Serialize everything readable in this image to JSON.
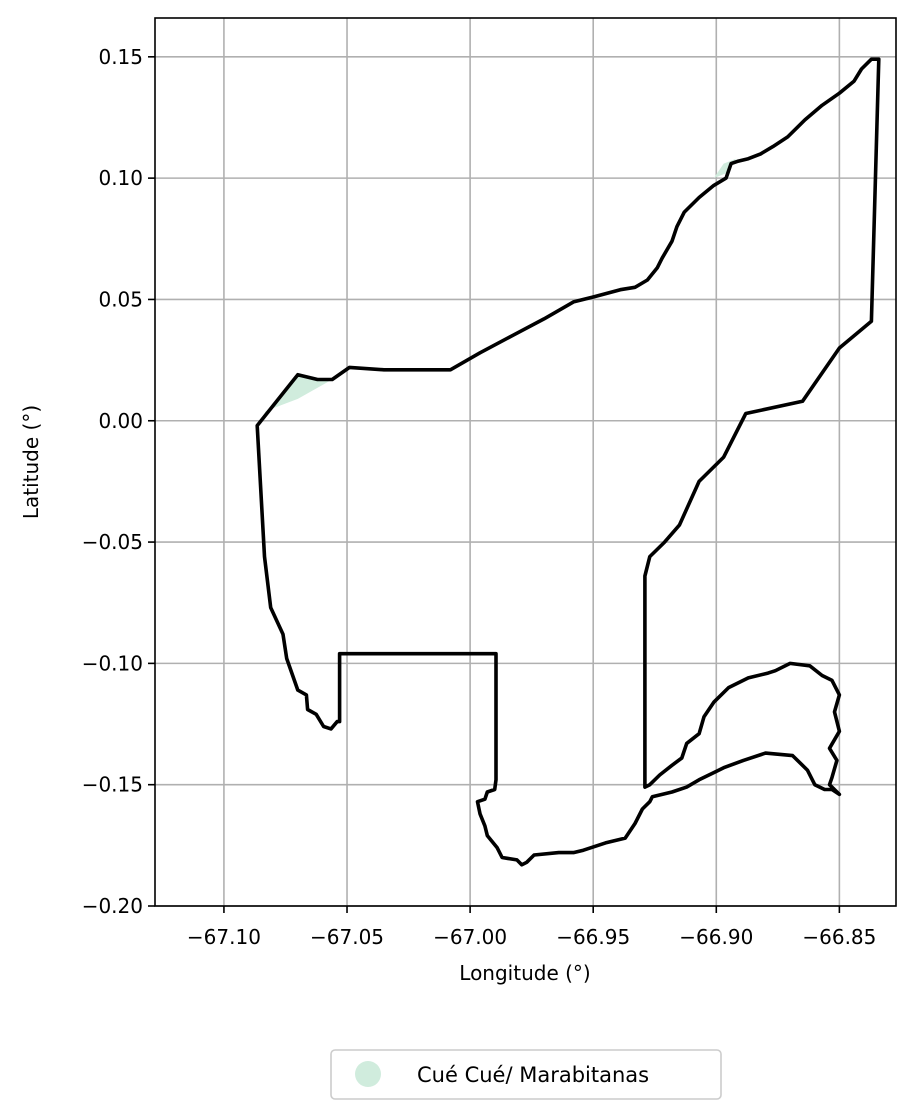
{
  "chart_data": {
    "type": "map",
    "xlabel": "Longitude (°)",
    "ylabel": "Latitude (°)",
    "xlim": [
      -67.128,
      -66.827
    ],
    "ylim": [
      -0.2,
      0.166
    ],
    "xticks": [
      -67.1,
      -67.05,
      -67.0,
      -66.95,
      -66.9,
      -66.85
    ],
    "xtick_labels": [
      "−67.10",
      "−67.05",
      "−67.00",
      "−66.95",
      "−66.90",
      "−66.85"
    ],
    "yticks": [
      0.15,
      0.1,
      0.05,
      0.0,
      -0.05,
      -0.1,
      -0.15,
      -0.2
    ],
    "ytick_labels": [
      "0.15",
      "0.10",
      "0.05",
      "0.00",
      "−0.05",
      "−0.10",
      "−0.15",
      "−0.20"
    ],
    "grid": true,
    "legend_position": "bottom-center",
    "legend": [
      {
        "label": "Cué Cué/ Marabitanas",
        "color": "#d0ecdd"
      }
    ],
    "fill_color": "#d0ecdd",
    "outline_color": "#000000",
    "outline": [
      [
        -67.0865,
        -0.002
      ],
      [
        -67.0835,
        -0.056
      ],
      [
        -67.081,
        -0.077
      ],
      [
        -67.076,
        -0.088
      ],
      [
        -67.0745,
        -0.098
      ],
      [
        -67.07,
        -0.111
      ],
      [
        -67.0665,
        -0.113
      ],
      [
        -67.066,
        -0.119
      ],
      [
        -67.0625,
        -0.121
      ],
      [
        -67.0595,
        -0.126
      ],
      [
        -67.0565,
        -0.127
      ],
      [
        -67.054,
        -0.124
      ],
      [
        -67.053,
        -0.124
      ],
      [
        -67.053,
        -0.096
      ],
      [
        -66.9895,
        -0.096
      ],
      [
        -66.9895,
        -0.148
      ],
      [
        -66.99,
        -0.152
      ],
      [
        -66.993,
        -0.153
      ],
      [
        -66.994,
        -0.156
      ],
      [
        -66.997,
        -0.157
      ],
      [
        -66.996,
        -0.162
      ],
      [
        -66.994,
        -0.167
      ],
      [
        -66.993,
        -0.171
      ],
      [
        -66.989,
        -0.176
      ],
      [
        -66.987,
        -0.18
      ],
      [
        -66.981,
        -0.181
      ],
      [
        -66.979,
        -0.183
      ],
      [
        -66.977,
        -0.182
      ],
      [
        -66.974,
        -0.179
      ],
      [
        -66.964,
        -0.178
      ],
      [
        -66.958,
        -0.178
      ],
      [
        -66.954,
        -0.177
      ],
      [
        -66.945,
        -0.174
      ],
      [
        -66.937,
        -0.172
      ],
      [
        -66.933,
        -0.166
      ],
      [
        -66.93,
        -0.16
      ],
      [
        -66.927,
        -0.157
      ],
      [
        -66.926,
        -0.155
      ],
      [
        -66.918,
        -0.153
      ],
      [
        -66.912,
        -0.151
      ],
      [
        -66.907,
        -0.148
      ],
      [
        -66.901,
        -0.145
      ],
      [
        -66.897,
        -0.143
      ],
      [
        -66.889,
        -0.14
      ],
      [
        -66.88,
        -0.137
      ],
      [
        -66.869,
        -0.138
      ],
      [
        -66.863,
        -0.144
      ],
      [
        -66.86,
        -0.15
      ],
      [
        -66.856,
        -0.152
      ],
      [
        -66.853,
        -0.152
      ],
      [
        -66.85,
        -0.154
      ],
      [
        -66.854,
        -0.15
      ],
      [
        -66.853,
        -0.147
      ],
      [
        -66.851,
        -0.14
      ],
      [
        -66.854,
        -0.135
      ],
      [
        -66.85,
        -0.128
      ],
      [
        -66.852,
        -0.12
      ],
      [
        -66.85,
        -0.113
      ],
      [
        -66.853,
        -0.107
      ],
      [
        -66.857,
        -0.105
      ],
      [
        -66.862,
        -0.101
      ],
      [
        -66.87,
        -0.1
      ],
      [
        -66.876,
        -0.103
      ],
      [
        -66.879,
        -0.104
      ],
      [
        -66.887,
        -0.106
      ],
      [
        -66.895,
        -0.11
      ],
      [
        -66.901,
        -0.116
      ],
      [
        -66.905,
        -0.122
      ],
      [
        -66.907,
        -0.129
      ],
      [
        -66.912,
        -0.133
      ],
      [
        -66.914,
        -0.139
      ],
      [
        -66.918,
        -0.142
      ],
      [
        -66.923,
        -0.146
      ],
      [
        -66.927,
        -0.15
      ],
      [
        -66.929,
        -0.151
      ],
      [
        -66.929,
        -0.064
      ],
      [
        -66.927,
        -0.056
      ],
      [
        -66.921,
        -0.05
      ],
      [
        -66.915,
        -0.043
      ],
      [
        -66.907,
        -0.025
      ],
      [
        -66.897,
        -0.015
      ],
      [
        -66.888,
        0.003
      ],
      [
        -66.865,
        0.008
      ],
      [
        -66.85,
        0.03
      ],
      [
        -66.837,
        0.041
      ],
      [
        -66.834,
        0.149
      ],
      [
        -66.837,
        0.149
      ],
      [
        -66.841,
        0.145
      ],
      [
        -66.844,
        0.14
      ],
      [
        -66.85,
        0.135
      ],
      [
        -66.857,
        0.13
      ],
      [
        -66.864,
        0.124
      ],
      [
        -66.871,
        0.117
      ],
      [
        -66.877,
        0.113
      ],
      [
        -66.882,
        0.11
      ],
      [
        -66.887,
        0.108
      ],
      [
        -66.891,
        0.107
      ],
      [
        -66.894,
        0.106
      ],
      [
        -66.896,
        0.1
      ],
      [
        -66.901,
        0.097
      ],
      [
        -66.907,
        0.092
      ],
      [
        -66.913,
        0.086
      ],
      [
        -66.916,
        0.08
      ],
      [
        -66.918,
        0.074
      ],
      [
        -66.922,
        0.067
      ],
      [
        -66.924,
        0.063
      ],
      [
        -66.928,
        0.058
      ],
      [
        -66.933,
        0.055
      ],
      [
        -66.939,
        0.054
      ],
      [
        -66.95,
        0.051
      ],
      [
        -66.958,
        0.049
      ],
      [
        -66.97,
        0.042
      ],
      [
        -66.983,
        0.035
      ],
      [
        -66.996,
        0.028
      ],
      [
        -67.008,
        0.021
      ],
      [
        -67.035,
        0.021
      ],
      [
        -67.049,
        0.022
      ],
      [
        -67.056,
        0.017
      ],
      [
        -67.062,
        0.017
      ],
      [
        -67.07,
        0.019
      ],
      [
        -67.0865,
        -0.002
      ]
    ],
    "shaded_regions": [
      [
        [
          -67.0865,
          -0.002
        ],
        [
          -67.07,
          0.019
        ],
        [
          -67.062,
          0.017
        ],
        [
          -67.056,
          0.017
        ],
        [
          -67.07,
          0.009
        ],
        [
          -67.083,
          0.004
        ]
      ],
      [
        [
          -66.901,
          0.1
        ],
        [
          -66.897,
          0.106
        ],
        [
          -66.892,
          0.108
        ],
        [
          -66.896,
          0.102
        ]
      ],
      [
        [
          -66.93,
          0.056
        ],
        [
          -66.924,
          0.06
        ],
        [
          -66.927,
          0.058
        ]
      ]
    ]
  }
}
